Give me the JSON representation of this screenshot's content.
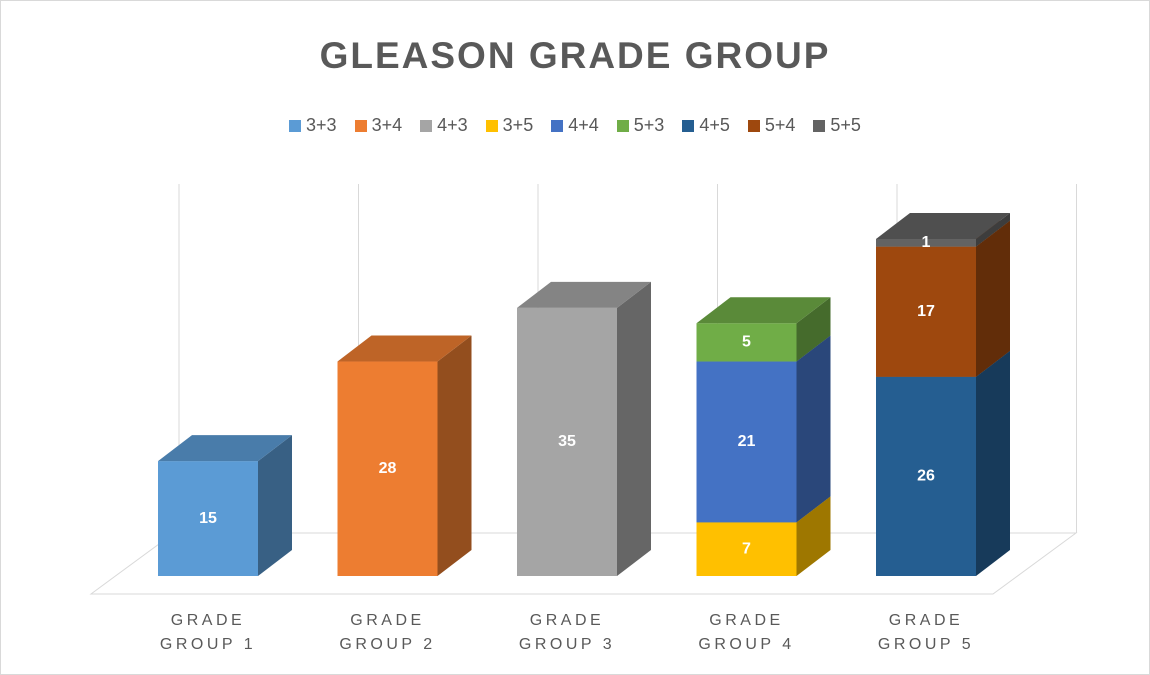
{
  "chart_data": {
    "type": "bar",
    "stacked": true,
    "title": "GLEASON GRADE GROUP",
    "categories": [
      "GRADE GROUP 1",
      "GRADE GROUP 2",
      "GRADE GROUP 3",
      "GRADE GROUP 4",
      "GRADE GROUP 5"
    ],
    "series": [
      {
        "name": "3+3",
        "color": "#5b9bd5",
        "values": [
          15,
          null,
          null,
          null,
          null
        ]
      },
      {
        "name": "3+4",
        "color": "#ed7d31",
        "values": [
          null,
          28,
          null,
          null,
          null
        ]
      },
      {
        "name": "4+3",
        "color": "#a5a5a5",
        "values": [
          null,
          null,
          35,
          null,
          null
        ]
      },
      {
        "name": "3+5",
        "color": "#ffc000",
        "values": [
          null,
          null,
          null,
          7,
          null
        ]
      },
      {
        "name": "4+4",
        "color": "#4472c4",
        "values": [
          null,
          null,
          null,
          21,
          null
        ]
      },
      {
        "name": "5+3",
        "color": "#70ad47",
        "values": [
          null,
          null,
          null,
          5,
          null
        ]
      },
      {
        "name": "4+5",
        "color": "#255e91",
        "values": [
          null,
          null,
          null,
          null,
          26
        ]
      },
      {
        "name": "5+4",
        "color": "#9e480e",
        "values": [
          null,
          null,
          null,
          null,
          17
        ]
      },
      {
        "name": "5+5",
        "color": "#636363",
        "values": [
          null,
          null,
          null,
          null,
          1
        ]
      }
    ],
    "ylim": [
      0,
      50
    ],
    "legend": "top"
  }
}
